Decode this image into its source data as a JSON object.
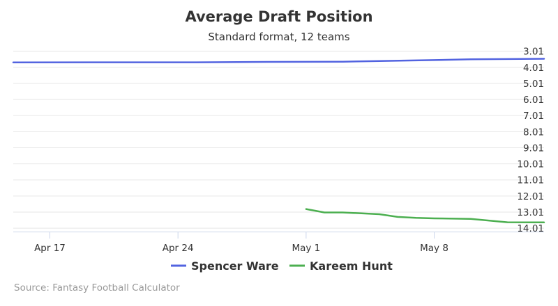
{
  "chart_data": {
    "type": "line",
    "title": "Average Draft Position",
    "subtitle": "Standard format, 12 teams",
    "xlabel": "",
    "ylabel": "",
    "x_tick_labels": [
      "Apr 17",
      "Apr 24",
      "May 1",
      "May 8"
    ],
    "y_tick_labels": [
      "3.01",
      "4.01",
      "5.01",
      "6.01",
      "7.01",
      "8.01",
      "9.01",
      "10.01",
      "11.01",
      "12.01",
      "13.01",
      "14.01"
    ],
    "y_reversed": true,
    "xlim": [
      "2017-04-15",
      "2017-05-14"
    ],
    "ylim": [
      2.68,
      14.22
    ],
    "grid": true,
    "legend_position": "bottom-center",
    "series": [
      {
        "name": "Spencer Ware",
        "color": "#5263e0",
        "points": [
          [
            "2017-04-15",
            3.71
          ],
          [
            "2017-04-20",
            3.7
          ],
          [
            "2017-04-25",
            3.7
          ],
          [
            "2017-04-28",
            3.68
          ],
          [
            "2017-05-01",
            3.67
          ],
          [
            "2017-05-03",
            3.66
          ],
          [
            "2017-05-05",
            3.62
          ],
          [
            "2017-05-08",
            3.56
          ],
          [
            "2017-05-10",
            3.51
          ],
          [
            "2017-05-14",
            3.48
          ]
        ]
      },
      {
        "name": "Kareem Hunt",
        "color": "#4caf50",
        "points": [
          [
            "2017-05-01",
            12.82
          ],
          [
            "2017-05-02",
            13.03
          ],
          [
            "2017-05-03",
            13.03
          ],
          [
            "2017-05-05",
            13.14
          ],
          [
            "2017-05-06",
            13.31
          ],
          [
            "2017-05-07",
            13.37
          ],
          [
            "2017-05-08",
            13.4
          ],
          [
            "2017-05-10",
            13.43
          ],
          [
            "2017-05-12",
            13.64
          ],
          [
            "2017-05-14",
            13.65
          ]
        ]
      }
    ]
  },
  "legend": {
    "items": [
      {
        "label": "Spencer Ware",
        "color": "#5263e0"
      },
      {
        "label": "Kareem Hunt",
        "color": "#4caf50"
      }
    ]
  },
  "credits": "Source: Fantasy Football Calculator"
}
